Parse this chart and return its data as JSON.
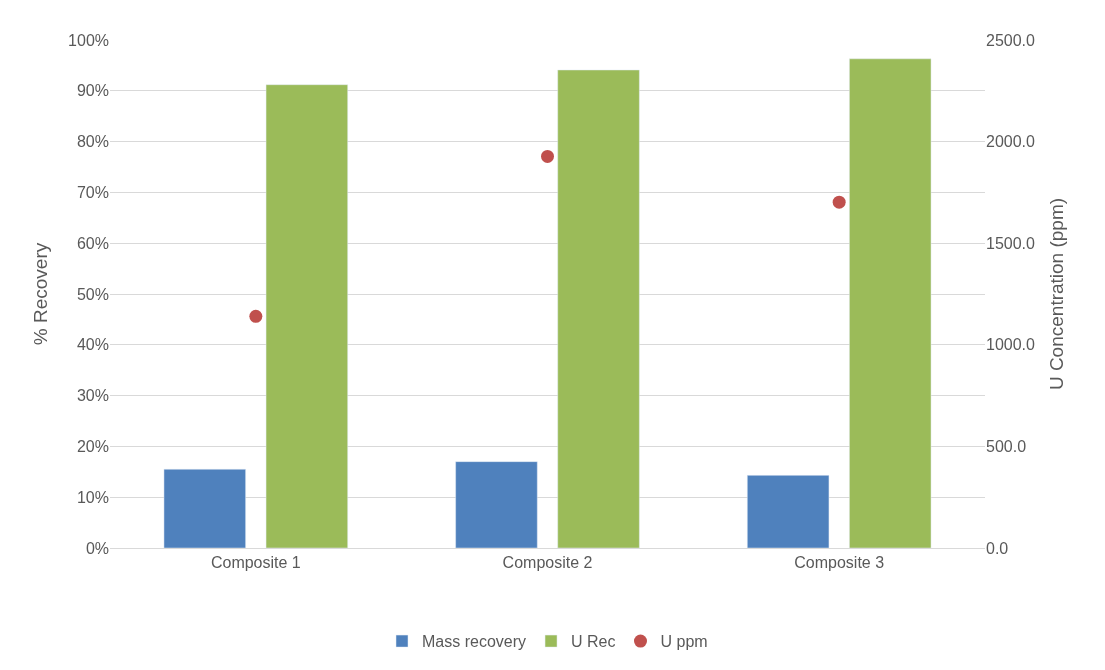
{
  "chart_data": {
    "type": "bar",
    "ylabel": "% Recovery",
    "y2label": "U Concentration (ppm)",
    "categories": [
      "Composite 1",
      "Composite 2",
      "Composite 3"
    ],
    "series": [
      {
        "name": "Mass recovery",
        "color": "#4f81bd",
        "values": [
          15.5,
          17.0,
          14.3
        ]
      },
      {
        "name": "U Rec",
        "color": "#9bbb59",
        "values": [
          91.2,
          94.1,
          96.3
        ]
      },
      {
        "name": "U ppm",
        "color": "#c0504d",
        "type": "scatter",
        "axis": "y2",
        "values": [
          1140,
          1927,
          1702
        ]
      }
    ],
    "ylim": [
      0,
      100
    ],
    "yticks": [
      {
        "value": 0,
        "label": "0%"
      },
      {
        "value": 10,
        "label": "10%"
      },
      {
        "value": 20,
        "label": "20%"
      },
      {
        "value": 30,
        "label": "30%"
      },
      {
        "value": 40,
        "label": "40%"
      },
      {
        "value": 50,
        "label": "50%"
      },
      {
        "value": 60,
        "label": "60%"
      },
      {
        "value": 70,
        "label": "70%"
      },
      {
        "value": 80,
        "label": "80%"
      },
      {
        "value": 90,
        "label": "90%"
      },
      {
        "value": 100,
        "label": "100%"
      }
    ],
    "y2lim": [
      0,
      2500
    ],
    "y2ticks": [
      {
        "value": 0,
        "label": "0.0"
      },
      {
        "value": 500,
        "label": "500.0"
      },
      {
        "value": 1000,
        "label": "1000.0"
      },
      {
        "value": 1500,
        "label": "1500.0"
      },
      {
        "value": 2000,
        "label": "2000.0"
      },
      {
        "value": 2500,
        "label": "2500.0"
      }
    ],
    "grid": "y",
    "legend": "bottom",
    "marker": "circle"
  }
}
